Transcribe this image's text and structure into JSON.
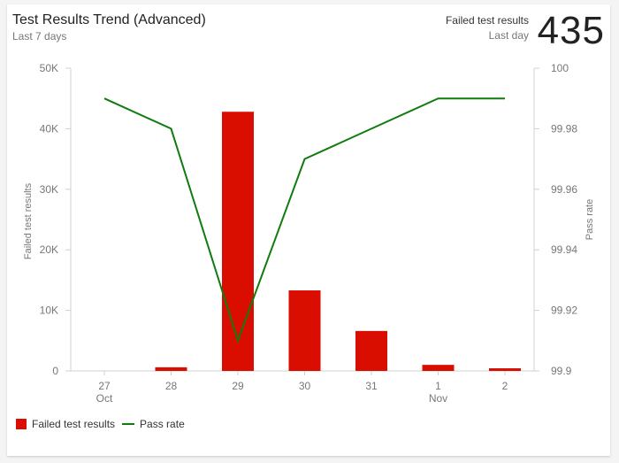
{
  "header": {
    "title": "Test Results Trend (Advanced)",
    "subtitle": "Last 7 days",
    "kpi_label": "Failed test results",
    "kpi_period": "Last day",
    "kpi_value": "435"
  },
  "legend": {
    "items": [
      {
        "label": "Failed test results",
        "color": "#d90d00",
        "type": "bar"
      },
      {
        "label": "Pass rate",
        "color": "#107c10",
        "type": "line"
      }
    ]
  },
  "chart_data": {
    "type": "bar",
    "title": "Test Results Trend (Advanced)",
    "categories": [
      "27 Oct",
      "28",
      "29",
      "30",
      "31",
      "1 Nov",
      "2"
    ],
    "x_tick_labels": [
      [
        "27",
        "Oct"
      ],
      [
        "28",
        ""
      ],
      [
        "29",
        ""
      ],
      [
        "30",
        ""
      ],
      [
        "31",
        ""
      ],
      [
        "1",
        "Nov"
      ],
      [
        "2",
        ""
      ]
    ],
    "series": [
      {
        "name": "Failed test results",
        "type": "bar",
        "axis": "left",
        "color": "#d90d00",
        "values": [
          0,
          600,
          42800,
          13300,
          6600,
          1000,
          435
        ]
      },
      {
        "name": "Pass rate",
        "type": "line",
        "axis": "right",
        "color": "#107c10",
        "values": [
          99.99,
          99.98,
          99.91,
          99.97,
          99.98,
          99.99,
          99.99
        ]
      }
    ],
    "ylabel": "Failed test results",
    "ylabel_right": "Pass rate",
    "ylim": [
      0,
      50000
    ],
    "ylim_right": [
      99.9,
      100
    ],
    "yticks": [
      "0",
      "10K",
      "20K",
      "30K",
      "40K",
      "50K"
    ],
    "yticks_right": [
      "99.9",
      "99.92",
      "99.94",
      "99.96",
      "99.98",
      "100"
    ],
    "grid": false,
    "legend_position": "bottom-left"
  }
}
